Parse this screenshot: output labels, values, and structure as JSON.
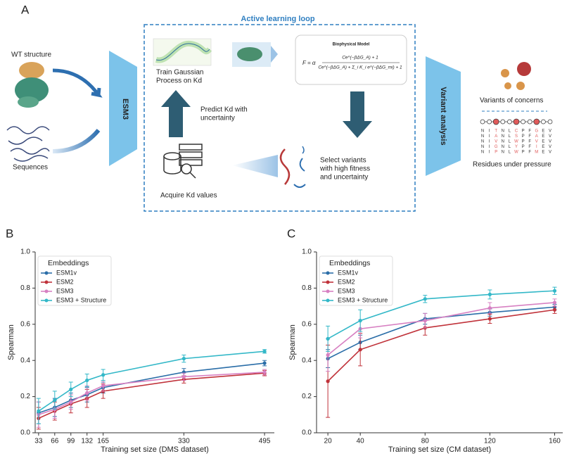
{
  "panel_a": {
    "label": "A",
    "loop_title": "Active learning loop",
    "wt_structure": "WT structure",
    "sequences": "Sequences",
    "esm3": "ESM3",
    "train": [
      "Train Gaussian",
      "Process on Kd"
    ],
    "biophysical_title": "Biophysical Model",
    "formula": {
      "lhs": "F = α",
      "numerator": "Ce^(−βΔG_A) + 1",
      "denominator": "Ce^(−βΔG_A) + Σ_i K_i e^(−βΔG_mi) + 1"
    },
    "predict": [
      "Predict Kd with",
      "uncertainty"
    ],
    "acquire": "Acquire Kd values",
    "select": [
      "Select variants",
      "with high fitness",
      "and uncertainty"
    ],
    "variant_analysis": "Variant analysis",
    "variants_of_concerns": "Variants of concerns",
    "residues_under_pressure": "Residues under pressure",
    "residue_columns": [
      {
        "letters": [
          "N",
          "N",
          "N",
          "N",
          "N"
        ],
        "color": "#333333"
      },
      {
        "letters": [
          "I",
          "I",
          "I",
          "I",
          "I"
        ],
        "color": "#333333"
      },
      {
        "letters": [
          "T",
          "A",
          "V",
          "G",
          "P"
        ],
        "color": "#e05a5a"
      },
      {
        "letters": [
          "N",
          "N",
          "N",
          "N",
          "N"
        ],
        "color": "#333333"
      },
      {
        "letters": [
          "L",
          "L",
          "L",
          "L",
          "L"
        ],
        "color": "#333333"
      },
      {
        "letters": [
          "C",
          "S",
          "W",
          "Y",
          "W"
        ],
        "color": "#e05a5a"
      },
      {
        "letters": [
          "P",
          "P",
          "P",
          "P",
          "P"
        ],
        "color": "#333333"
      },
      {
        "letters": [
          "F",
          "F",
          "F",
          "F",
          "F"
        ],
        "color": "#333333"
      },
      {
        "letters": [
          "G",
          "A",
          "V",
          "I",
          "M"
        ],
        "color": "#e05a5a"
      },
      {
        "letters": [
          "E",
          "E",
          "E",
          "E",
          "E"
        ],
        "color": "#333333"
      },
      {
        "letters": [
          "V",
          "V",
          "V",
          "V",
          "V"
        ],
        "color": "#333333"
      }
    ]
  },
  "chart_data": [
    {
      "type": "line",
      "panel": "B",
      "xlabel": "Training set size (DMS dataset)",
      "ylabel": "Spearman",
      "legend_title": "Embeddings",
      "legend": "upper left",
      "grid": false,
      "x": [
        33,
        66,
        99,
        132,
        165,
        330,
        495
      ],
      "xlim": [
        26,
        515
      ],
      "xticks": [
        33,
        66,
        99,
        132,
        165,
        330,
        495
      ],
      "ylim": [
        0,
        1
      ],
      "yticks": [
        {
          "value": 0,
          "label": "0.0"
        },
        {
          "value": 0.2,
          "label": "0.2"
        },
        {
          "value": 0.4,
          "label": "0.4"
        },
        {
          "value": 0.6,
          "label": "0.6"
        },
        {
          "value": 0.8,
          "label": "0.8"
        },
        {
          "value": 1,
          "label": "1.0"
        }
      ],
      "series": [
        {
          "name": "ESM1v",
          "color": "#2b6ea8",
          "values": [
            0.11,
            0.14,
            0.18,
            0.21,
            0.25,
            0.335,
            0.385
          ],
          "errors": [
            0.06,
            0.05,
            0.04,
            0.04,
            0.03,
            0.02,
            0.015
          ]
        },
        {
          "name": "ESM2",
          "color": "#c0323a",
          "values": [
            0.08,
            0.12,
            0.16,
            0.19,
            0.23,
            0.295,
            0.33
          ],
          "errors": [
            0.06,
            0.05,
            0.05,
            0.05,
            0.04,
            0.02,
            0.015
          ]
        },
        {
          "name": "ESM3",
          "color": "#d780c2",
          "values": [
            0.1,
            0.13,
            0.17,
            0.22,
            0.26,
            0.31,
            0.335
          ],
          "errors": [
            0.07,
            0.05,
            0.04,
            0.04,
            0.03,
            0.02,
            0.015
          ]
        },
        {
          "name": "ESM3 + Structure",
          "color": "#33b8c8",
          "values": [
            0.12,
            0.18,
            0.24,
            0.29,
            0.32,
            0.41,
            0.45
          ],
          "errors": [
            0.07,
            0.05,
            0.04,
            0.035,
            0.03,
            0.02,
            0.01
          ]
        }
      ]
    },
    {
      "type": "line",
      "panel": "C",
      "xlabel": "Training set size (CM dataset)",
      "ylabel": "Spearman",
      "legend_title": "Embeddings",
      "legend": "upper left",
      "grid": false,
      "x": [
        20,
        40,
        80,
        120,
        160
      ],
      "xlim": [
        13,
        165
      ],
      "xticks": [
        20,
        40,
        80,
        120,
        160
      ],
      "ylim": [
        0,
        1
      ],
      "yticks": [
        {
          "value": 0,
          "label": "0.0"
        },
        {
          "value": 0.2,
          "label": "0.2"
        },
        {
          "value": 0.4,
          "label": "0.4"
        },
        {
          "value": 0.6,
          "label": "0.6"
        },
        {
          "value": 0.8,
          "label": "0.8"
        },
        {
          "value": 1,
          "label": "1.0"
        }
      ],
      "series": [
        {
          "name": "ESM1v",
          "color": "#2b6ea8",
          "values": [
            0.41,
            0.5,
            0.63,
            0.665,
            0.695
          ],
          "errors": [
            0.05,
            0.04,
            0.03,
            0.02,
            0.015
          ]
        },
        {
          "name": "ESM2",
          "color": "#c0323a",
          "values": [
            0.285,
            0.46,
            0.58,
            0.63,
            0.68
          ],
          "errors": [
            0.2,
            0.09,
            0.04,
            0.025,
            0.02
          ]
        },
        {
          "name": "ESM3",
          "color": "#d780c2",
          "values": [
            0.43,
            0.575,
            0.62,
            0.69,
            0.72
          ],
          "errors": [
            0.09,
            0.05,
            0.04,
            0.03,
            0.02
          ]
        },
        {
          "name": "ESM3 + Structure",
          "color": "#33b8c8",
          "values": [
            0.52,
            0.62,
            0.74,
            0.765,
            0.785
          ],
          "errors": [
            0.07,
            0.06,
            0.02,
            0.025,
            0.02
          ]
        }
      ]
    }
  ]
}
